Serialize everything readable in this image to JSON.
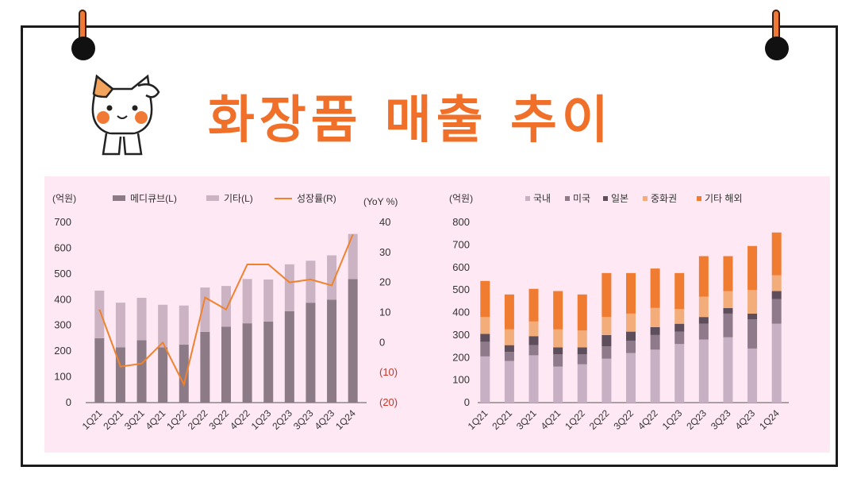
{
  "page": {
    "title": "화장품 매출 추이",
    "colors": {
      "title": "#f0702a",
      "panel": "#fde8f3",
      "clip": "#f07a35"
    },
    "mascot_icon": "cat-saluting-icon"
  },
  "chart_data": [
    {
      "type": "bar",
      "stacked": true,
      "categories": [
        "1Q21",
        "2Q21",
        "3Q21",
        "4Q21",
        "1Q22",
        "2Q22",
        "3Q22",
        "4Q22",
        "1Q23",
        "2Q23",
        "3Q23",
        "4Q23",
        "1Q24"
      ],
      "left_unit": "(억원)",
      "right_unit": "(YoY %)",
      "ylim": [
        0,
        700
      ],
      "yticks": [
        "0",
        "100",
        "200",
        "300",
        "400",
        "500",
        "600",
        "700"
      ],
      "y2lim": [
        -20,
        40
      ],
      "y2ticks": [
        "(20)",
        "(10)",
        "0",
        "10",
        "20",
        "30",
        "40"
      ],
      "legend_position": "top",
      "series": [
        {
          "name": "메디큐브(L)",
          "kind": "bar",
          "color": "#8c7a87",
          "values": [
            250,
            215,
            242,
            215,
            225,
            275,
            295,
            308,
            315,
            355,
            388,
            400,
            480
          ]
        },
        {
          "name": "기타(L)",
          "kind": "bar",
          "color": "#cbb3c4",
          "values": [
            185,
            173,
            165,
            165,
            152,
            172,
            158,
            172,
            163,
            182,
            163,
            172,
            175
          ]
        },
        {
          "name": "성장률(R)",
          "kind": "line",
          "axis": "right",
          "color": "#f0822d",
          "values": [
            11,
            -8,
            -7,
            0,
            -14,
            15,
            11,
            26,
            26,
            20,
            21,
            19,
            36
          ]
        }
      ]
    },
    {
      "type": "bar",
      "stacked": true,
      "categories": [
        "1Q21",
        "2Q21",
        "3Q21",
        "4Q21",
        "1Q22",
        "2Q22",
        "3Q22",
        "4Q22",
        "1Q23",
        "2Q23",
        "3Q23",
        "4Q23",
        "1Q24"
      ],
      "left_unit": "(억원)",
      "ylim": [
        0,
        800
      ],
      "yticks": [
        "0",
        "100",
        "200",
        "300",
        "400",
        "500",
        "600",
        "700",
        "800"
      ],
      "legend_position": "top",
      "series": [
        {
          "name": "국내",
          "color": "#c8b0c4",
          "values": [
            205,
            185,
            210,
            160,
            170,
            195,
            220,
            235,
            260,
            280,
            290,
            240,
            350
          ]
        },
        {
          "name": "미국",
          "color": "#8e7a8a",
          "values": [
            65,
            40,
            45,
            55,
            45,
            55,
            55,
            65,
            55,
            70,
            105,
            130,
            110
          ]
        },
        {
          "name": "일본",
          "color": "#5e4d5a",
          "values": [
            35,
            30,
            40,
            30,
            30,
            50,
            40,
            35,
            35,
            30,
            25,
            25,
            35
          ]
        },
        {
          "name": "중화권",
          "color": "#f2ad7b",
          "values": [
            75,
            70,
            65,
            80,
            75,
            80,
            80,
            85,
            65,
            90,
            75,
            105,
            70
          ]
        },
        {
          "name": "기타 해외",
          "color": "#f07c32",
          "values": [
            160,
            155,
            145,
            170,
            160,
            195,
            180,
            175,
            160,
            180,
            155,
            195,
            190
          ]
        }
      ]
    }
  ]
}
